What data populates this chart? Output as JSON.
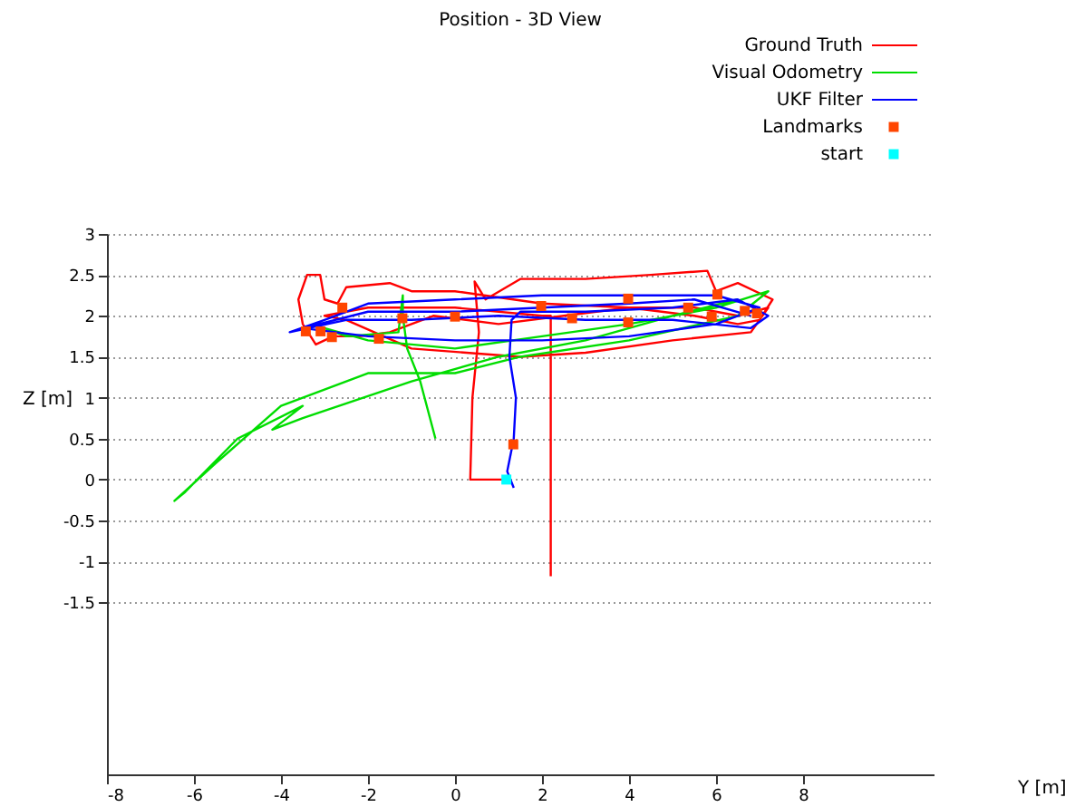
{
  "chart_data": {
    "type": "line",
    "title": "Position - 3D View",
    "xlabel": "Y [m]",
    "ylabel": "Z [m]",
    "xlim": [
      -8,
      11
    ],
    "xticks": [
      -8,
      -6,
      -4,
      -2,
      0,
      2,
      4,
      6,
      8
    ],
    "ylim": [
      -3.6,
      3
    ],
    "yticks": [
      -1.5,
      -1,
      -0.5,
      0,
      0.5,
      1,
      1.5,
      2,
      2.5,
      3
    ],
    "grid": "y",
    "legend": "top right",
    "series": [
      {
        "name": "Ground Truth",
        "color": "#ff0000",
        "x": [
          1.2,
          0.35,
          0.4,
          0.55,
          0.45,
          0.7,
          1.5,
          3,
          4.5,
          5.8,
          6,
          6.5,
          7.3,
          7,
          6.5,
          5.5,
          4,
          2,
          0,
          -1,
          -1.5,
          -2.5,
          -2.7,
          -3,
          -3.1,
          -3.4,
          -3.6,
          -3.5,
          -3.2,
          -2.8,
          -2.2,
          -1.5,
          -0.5,
          1,
          2.5,
          4,
          5.5,
          6.5,
          7.2,
          6.8,
          5,
          3,
          1.5,
          -1,
          -2.5,
          -3,
          -2,
          0,
          2,
          2.2,
          2.2
        ],
        "values": [
          0,
          0,
          1.0,
          1.8,
          2.42,
          2.2,
          2.45,
          2.45,
          2.5,
          2.55,
          2.3,
          2.4,
          2.2,
          1.95,
          1.9,
          2.0,
          2.1,
          2.15,
          2.3,
          2.3,
          2.4,
          2.35,
          2.15,
          2.2,
          2.5,
          2.5,
          2.2,
          1.9,
          1.65,
          1.75,
          1.75,
          1.8,
          2.0,
          1.9,
          2.0,
          2.1,
          2.1,
          2.0,
          2.1,
          1.8,
          1.7,
          1.55,
          1.5,
          1.6,
          1.95,
          2.0,
          2.1,
          2.1,
          2.0,
          2.0,
          -1.18
        ]
      },
      {
        "name": "Visual Odometry",
        "color": "#00dd00",
        "x": [
          -0.45,
          -0.8,
          -1.1,
          -1.2,
          -1.2,
          -1.3,
          -2.5,
          -3,
          -2,
          0,
          2,
          4,
          6,
          7.2,
          6.5,
          4,
          1.5,
          0,
          -2,
          -4,
          -5.5,
          -6.45,
          -6.2,
          -5,
          -3.5,
          -4.2,
          -3.5,
          -1,
          1,
          3,
          5,
          6.5
        ],
        "values": [
          0.5,
          1.2,
          1.6,
          2.0,
          2.25,
          1.8,
          1.75,
          1.85,
          1.7,
          1.6,
          1.75,
          1.9,
          2.1,
          2.3,
          2.0,
          1.7,
          1.5,
          1.3,
          1.3,
          0.9,
          0.2,
          -0.26,
          -0.15,
          0.5,
          0.9,
          0.61,
          0.75,
          1.2,
          1.5,
          1.7,
          2.0,
          2.2
        ]
      },
      {
        "name": "UKF Filter",
        "color": "#0000ff",
        "x": [
          1.35,
          1.2,
          1.35,
          1.4,
          1.25,
          1.3,
          1.5,
          3,
          5,
          6.5,
          7.2,
          6.8,
          5,
          3,
          1,
          -1,
          -2.5,
          -3.8,
          -3,
          -2,
          0,
          2,
          4,
          6,
          7,
          6,
          4,
          2,
          0,
          -2,
          -3.5,
          -2,
          0,
          2,
          4,
          5.5,
          6.8
        ],
        "values": [
          -0.1,
          0.1,
          0.5,
          1.0,
          1.5,
          1.95,
          2.05,
          2.05,
          2.1,
          2.2,
          2.0,
          1.85,
          1.95,
          1.95,
          2.0,
          1.95,
          1.95,
          1.8,
          1.95,
          2.15,
          2.2,
          2.25,
          2.25,
          2.25,
          2.1,
          1.9,
          1.75,
          1.7,
          1.7,
          1.75,
          1.85,
          2.05,
          2.05,
          2.1,
          2.15,
          2.2,
          2.0
        ]
      },
      {
        "name": "Landmarks",
        "color": "#ff4500",
        "type": "scatter",
        "marker": "square",
        "x": [
          -3.43,
          -3.09,
          -2.83,
          -2.59,
          -1.75,
          -1.21,
          0,
          1.98,
          2.69,
          3.98,
          3.98,
          5.36,
          6.03,
          5.9,
          6.66,
          6.94,
          1.34
        ],
        "values": [
          1.81,
          1.81,
          1.74,
          2.1,
          1.72,
          1.97,
          1.99,
          2.12,
          1.97,
          1.92,
          2.21,
          2.1,
          2.26,
          1.99,
          2.06,
          2.03,
          0.43
        ]
      },
      {
        "name": "start",
        "color": "#00ffff",
        "type": "scatter",
        "marker": "square",
        "x": [
          1.18
        ],
        "values": [
          0
        ]
      }
    ]
  }
}
